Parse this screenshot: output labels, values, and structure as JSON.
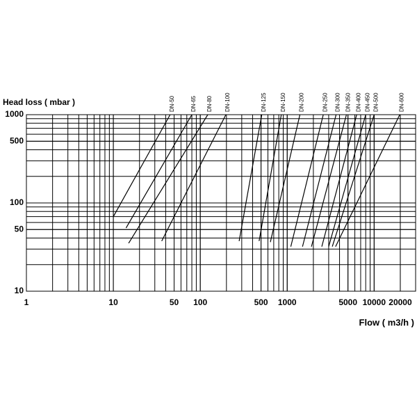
{
  "chart_data": {
    "type": "line",
    "x_label": "Flow ( m3/h )",
    "y_label": "Head loss ( mbar )",
    "log_x": true,
    "log_y": true,
    "grid": true,
    "color": "#000000",
    "xlim": [
      1,
      30000
    ],
    "ylim": [
      10,
      1000
    ],
    "xticks": [
      1,
      10,
      50,
      100,
      500,
      1000,
      5000,
      10000,
      20000
    ],
    "yticks": [
      10,
      50,
      100,
      500,
      1000
    ],
    "series": [
      {
        "name": "DN-50",
        "x": [
          10,
          45
        ],
        "values": [
          70,
          1000
        ]
      },
      {
        "name": "DN-65",
        "x": [
          14,
          80
        ],
        "values": [
          52,
          1000
        ]
      },
      {
        "name": "DN-80",
        "x": [
          15,
          122
        ],
        "values": [
          35,
          1000
        ]
      },
      {
        "name": "DN-100",
        "x": [
          36,
          197
        ],
        "values": [
          37,
          1000
        ]
      },
      {
        "name": "DN-125",
        "x": [
          280,
          510
        ],
        "values": [
          37,
          1000
        ]
      },
      {
        "name": "DN-150",
        "x": [
          475,
          855
        ],
        "values": [
          37,
          1000
        ]
      },
      {
        "name": "DN-200",
        "x": [
          640,
          1400
        ],
        "values": [
          36,
          1000
        ]
      },
      {
        "name": "DN-250",
        "x": [
          1100,
          2600
        ],
        "values": [
          32,
          1000
        ]
      },
      {
        "name": "DN-300",
        "x": [
          1500,
          3650
        ],
        "values": [
          32,
          1000
        ]
      },
      {
        "name": "DN-350",
        "x": [
          1900,
          4800
        ],
        "values": [
          32,
          1000
        ]
      },
      {
        "name": "DN-400",
        "x": [
          2500,
          6300
        ],
        "values": [
          32,
          1000
        ]
      },
      {
        "name": "DN-450",
        "x": [
          3000,
          8000
        ],
        "values": [
          32,
          1000
        ]
      },
      {
        "name": "DN-500",
        "x": [
          3300,
          10000
        ],
        "values": [
          32,
          1000
        ]
      },
      {
        "name": "DN-600",
        "x": [
          3600,
          19700
        ],
        "values": [
          32,
          1000
        ]
      }
    ]
  }
}
